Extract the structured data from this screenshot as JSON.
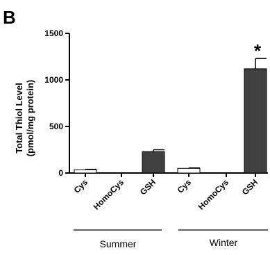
{
  "panel_label": "B",
  "chart_data": {
    "type": "bar",
    "ylabel_line1": "Total Thiol Level",
    "ylabel_line2": "(pmol/mg protein)",
    "ylim": [
      0,
      1500
    ],
    "yticks": [
      "0",
      "500",
      "1000",
      "1500"
    ],
    "ytick_values": [
      0,
      500,
      1000,
      1500
    ],
    "categories": [
      "Cys",
      "HomoCys",
      "GSH",
      "Cys",
      "HomoCys",
      "GSH"
    ],
    "values": [
      35,
      0,
      230,
      50,
      0,
      1120
    ],
    "errors": [
      5,
      0,
      20,
      5,
      0,
      110
    ],
    "fills": [
      "#ffffff",
      "#ffffff",
      "#404040",
      "#ffffff",
      "#ffffff",
      "#404040"
    ],
    "groups": [
      "Summer",
      "Winter"
    ],
    "significance_marker": "*",
    "significant_index": 5
  },
  "colors": {
    "dark_bar": "#404040",
    "light_bar": "#ffffff",
    "axis": "#000000"
  }
}
